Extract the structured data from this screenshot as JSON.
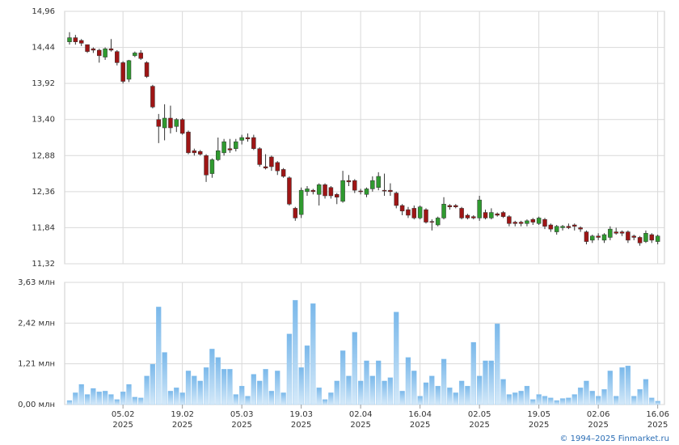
{
  "chart_data": {
    "type": "candlestick",
    "open": [
      14.52,
      14.58,
      14.54,
      14.48,
      14.42,
      14.4,
      14.3,
      14.42,
      14.38,
      14.22,
      13.98,
      14.32,
      14.36,
      14.22,
      13.88,
      13.4,
      13.28,
      13.42,
      13.3,
      13.4,
      13.22,
      12.95,
      12.94,
      12.88,
      12.62,
      12.82,
      12.92,
      12.98,
      12.98,
      13.1,
      13.14,
      13.14,
      12.98,
      12.72,
      12.86,
      12.78,
      12.68,
      12.56,
      12.12,
      12.03,
      12.36,
      12.38,
      12.32,
      12.46,
      12.42,
      12.32,
      12.22,
      12.52,
      12.52,
      12.37,
      12.32,
      12.4,
      12.42,
      12.38,
      12.38,
      12.34,
      12.16,
      12.1,
      12.12,
      11.98,
      12.1,
      11.93,
      11.88,
      11.98,
      12.16,
      12.16,
      12.12,
      12.02,
      12.0,
      11.98,
      12.06,
      11.98,
      12.04,
      12.06,
      12.0,
      11.92,
      11.92,
      11.9,
      11.96,
      11.9,
      11.96,
      11.88,
      11.78,
      11.84,
      11.86,
      11.88,
      11.84,
      11.78,
      11.66,
      11.72,
      11.66,
      11.7,
      11.78,
      11.78,
      11.78,
      11.72,
      11.7,
      11.64,
      11.74,
      11.64
    ],
    "close": [
      14.58,
      14.52,
      14.5,
      14.38,
      14.4,
      14.32,
      14.42,
      14.4,
      14.22,
      13.95,
      14.25,
      14.36,
      14.28,
      14.02,
      13.58,
      13.3,
      13.42,
      13.28,
      13.4,
      13.2,
      12.92,
      12.92,
      12.9,
      12.6,
      12.82,
      12.95,
      13.08,
      12.96,
      13.08,
      13.14,
      13.12,
      12.98,
      12.75,
      12.7,
      12.72,
      12.66,
      12.58,
      12.18,
      11.98,
      12.38,
      12.4,
      12.36,
      12.46,
      12.3,
      12.3,
      12.28,
      12.52,
      12.5,
      12.38,
      12.36,
      12.4,
      12.52,
      12.58,
      12.37,
      12.36,
      12.16,
      12.08,
      12.02,
      11.98,
      12.14,
      11.92,
      11.92,
      11.98,
      12.18,
      12.14,
      12.14,
      11.98,
      11.98,
      11.98,
      12.24,
      11.98,
      12.06,
      12.02,
      12.0,
      11.9,
      11.9,
      11.9,
      11.94,
      11.92,
      11.98,
      11.86,
      11.82,
      11.86,
      11.86,
      11.84,
      11.86,
      11.82,
      11.64,
      11.72,
      11.7,
      11.74,
      11.82,
      11.76,
      11.76,
      11.66,
      11.7,
      11.62,
      11.76,
      11.66,
      11.72
    ],
    "high": [
      14.66,
      14.62,
      14.56,
      14.48,
      14.44,
      14.42,
      14.44,
      14.56,
      14.4,
      14.24,
      14.26,
      14.38,
      14.4,
      14.24,
      13.9,
      13.48,
      13.62,
      13.6,
      13.42,
      13.42,
      13.24,
      12.98,
      12.96,
      12.9,
      12.84,
      13.14,
      13.12,
      13.12,
      13.12,
      13.18,
      13.2,
      13.18,
      13.0,
      12.9,
      12.88,
      12.8,
      12.7,
      12.58,
      12.14,
      12.42,
      12.44,
      12.4,
      12.48,
      12.48,
      12.44,
      12.34,
      12.66,
      12.6,
      12.54,
      12.4,
      12.42,
      12.58,
      12.64,
      12.62,
      12.48,
      12.36,
      12.18,
      12.14,
      12.16,
      12.16,
      12.12,
      11.96,
      12.0,
      12.28,
      12.18,
      12.18,
      12.14,
      12.04,
      12.02,
      12.3,
      12.1,
      12.12,
      12.06,
      12.08,
      12.02,
      11.94,
      11.94,
      11.96,
      11.98,
      12.0,
      11.98,
      11.9,
      11.88,
      11.88,
      11.9,
      11.9,
      11.86,
      11.8,
      11.74,
      11.76,
      11.76,
      11.86,
      11.84,
      11.8,
      11.8,
      11.74,
      11.72,
      11.8,
      11.76,
      11.74
    ],
    "low": [
      14.48,
      14.48,
      14.46,
      14.36,
      14.36,
      14.22,
      14.26,
      14.38,
      14.18,
      13.92,
      13.94,
      14.3,
      14.26,
      14.0,
      13.56,
      13.06,
      13.1,
      13.2,
      13.22,
      13.18,
      12.9,
      12.88,
      12.88,
      12.5,
      12.56,
      12.8,
      12.88,
      12.92,
      12.94,
      13.04,
      13.08,
      12.96,
      12.72,
      12.68,
      12.66,
      12.6,
      12.56,
      12.16,
      11.94,
      11.98,
      12.3,
      12.32,
      12.16,
      12.26,
      12.26,
      12.18,
      12.2,
      12.44,
      12.34,
      12.32,
      12.28,
      12.36,
      12.38,
      12.3,
      12.3,
      12.12,
      12.02,
      11.98,
      11.96,
      11.96,
      11.9,
      11.8,
      11.86,
      11.96,
      12.1,
      12.12,
      11.96,
      11.96,
      11.96,
      11.94,
      11.96,
      11.96,
      12.0,
      11.98,
      11.86,
      11.86,
      11.86,
      11.86,
      11.88,
      11.88,
      11.82,
      11.78,
      11.74,
      11.8,
      11.82,
      11.8,
      11.78,
      11.6,
      11.62,
      11.66,
      11.62,
      11.66,
      11.74,
      11.72,
      11.62,
      11.66,
      11.58,
      11.62,
      11.62,
      11.6
    ],
    "volume": [
      0.12,
      0.35,
      0.6,
      0.3,
      0.48,
      0.38,
      0.4,
      0.3,
      0.15,
      0.38,
      0.6,
      0.22,
      0.2,
      0.85,
      1.2,
      2.9,
      1.55,
      0.4,
      0.5,
      0.35,
      1.0,
      0.85,
      0.7,
      1.1,
      1.65,
      1.4,
      1.05,
      1.05,
      0.3,
      0.55,
      0.25,
      0.9,
      0.7,
      1.05,
      0.4,
      1.0,
      0.35,
      2.1,
      3.1,
      1.1,
      1.75,
      3.0,
      0.5,
      0.15,
      0.35,
      0.7,
      1.6,
      0.85,
      2.15,
      0.7,
      1.3,
      0.85,
      1.3,
      0.7,
      0.8,
      2.75,
      0.4,
      1.4,
      1.0,
      0.25,
      0.65,
      0.85,
      0.55,
      1.35,
      0.5,
      0.35,
      0.7,
      0.55,
      1.85,
      0.85,
      1.3,
      1.3,
      2.4,
      0.75,
      0.3,
      0.35,
      0.4,
      0.55,
      0.15,
      0.3,
      0.25,
      0.2,
      0.12,
      0.18,
      0.2,
      0.3,
      0.5,
      0.7,
      0.4,
      0.25,
      0.45,
      1.0,
      0.25,
      1.1,
      1.15,
      0.25,
      0.45,
      0.75,
      0.2,
      0.1
    ],
    "up_color": "#2f9a2f",
    "down_color": "#9e1515",
    "volume_color": "#8cc4ee",
    "ylim": [
      11.32,
      14.96
    ],
    "yticks": [
      {
        "value": 11.32,
        "label": "11,32"
      },
      {
        "value": 11.84,
        "label": "11,84"
      },
      {
        "value": 12.36,
        "label": "12,36"
      },
      {
        "value": 12.88,
        "label": "12,88"
      },
      {
        "value": 13.4,
        "label": "13,40"
      },
      {
        "value": 13.92,
        "label": "13,92"
      },
      {
        "value": 14.44,
        "label": "14,44"
      },
      {
        "value": 14.96,
        "label": "14,96"
      }
    ],
    "y2lim": [
      0,
      3.63
    ],
    "y2ticks": [
      {
        "value": 0,
        "label": "0,00 млн"
      },
      {
        "value": 1.21,
        "label": "1,21 млн"
      },
      {
        "value": 2.42,
        "label": "2,42 млн"
      },
      {
        "value": 3.63,
        "label": "3,63 млн"
      }
    ],
    "xticks": [
      {
        "value": 9,
        "label": "05.02",
        "year": "2025"
      },
      {
        "value": 19,
        "label": "19.02",
        "year": "2025"
      },
      {
        "value": 29,
        "label": "05.03",
        "year": "2025"
      },
      {
        "value": 39,
        "label": "19.03",
        "year": "2025"
      },
      {
        "value": 49,
        "label": "02.04",
        "year": "2025"
      },
      {
        "value": 59,
        "label": "16.04",
        "year": "2025"
      },
      {
        "value": 69,
        "label": "02.05",
        "year": "2025"
      },
      {
        "value": 79,
        "label": "19.05",
        "year": "2025"
      },
      {
        "value": 89,
        "label": "02.06",
        "year": "2025"
      },
      {
        "value": 99,
        "label": "16.06",
        "year": "2025"
      }
    ],
    "grid": true,
    "footer": "© 1994–2025 Finmarket.ru"
  }
}
